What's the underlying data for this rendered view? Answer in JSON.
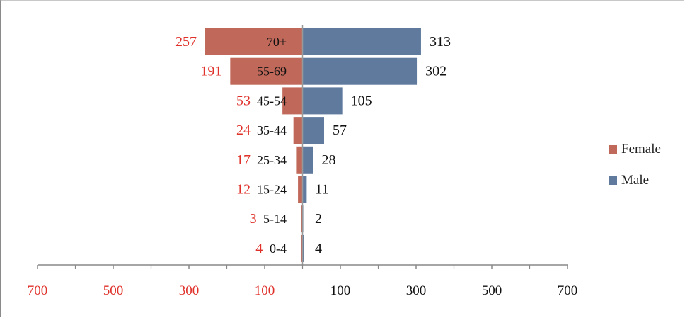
{
  "chart_data": {
    "type": "bar",
    "orientation": "horizontal-population-pyramid",
    "categories": [
      "70+",
      "55-69",
      "45-54",
      "35-44",
      "25-34",
      "15-24",
      "5-14",
      "0-4"
    ],
    "series": [
      {
        "name": "Female",
        "values": [
          257,
          191,
          53,
          24,
          17,
          12,
          3,
          4
        ],
        "color": "#c0695a",
        "label_color": "#e0302a"
      },
      {
        "name": "Male",
        "values": [
          313,
          302,
          105,
          57,
          28,
          11,
          2,
          4
        ],
        "color": "#607a9e",
        "label_color": "#111111"
      }
    ],
    "female_data_labels": [
      "257",
      "191",
      "53",
      "24",
      "17",
      "12",
      "3",
      "4"
    ],
    "male_data_labels": [
      "313",
      "302",
      "105",
      "57",
      "28",
      "11",
      "2",
      "4"
    ],
    "x_tick_labels": [
      "700",
      "500",
      "300",
      "100",
      "100",
      "300",
      "500",
      "700"
    ],
    "x_tick_values": [
      -700,
      -500,
      -300,
      -100,
      100,
      300,
      500,
      700
    ],
    "xlim": [
      -700,
      700
    ],
    "left_tick_color": "#e0302a",
    "right_tick_color": "#111111",
    "legend_position": "right",
    "grid": false
  },
  "legend": {
    "female_label": "Female",
    "male_label": "Male"
  }
}
